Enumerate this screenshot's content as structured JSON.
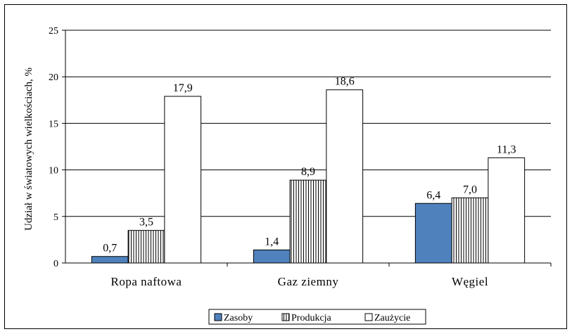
{
  "chart_data": {
    "type": "bar",
    "categories": [
      "Ropa naftowa",
      "Gaz ziemny",
      "Węgiel"
    ],
    "series": [
      {
        "name": "Zasoby",
        "values": [
          0.7,
          1.4,
          6.4
        ],
        "labels": [
          "0,7",
          "1,4",
          "6,4"
        ],
        "color": "#4f81bd",
        "fill": "solid"
      },
      {
        "name": "Produkcja",
        "values": [
          3.5,
          8.9,
          7.0
        ],
        "labels": [
          "3,5",
          "8,9",
          "7,0"
        ],
        "color": "#ffffff",
        "fill": "vertical-lines"
      },
      {
        "name": "Zaużycie",
        "values": [
          17.9,
          18.6,
          11.3
        ],
        "labels": [
          "17,9",
          "18,6",
          "11,3"
        ],
        "color": "#ffffff",
        "fill": "solid"
      }
    ],
    "title": "",
    "xlabel": "",
    "ylabel": "Udział w światowych wielkościach, %",
    "ylim": [
      0,
      25
    ],
    "yticks": [
      0,
      5,
      10,
      15,
      20,
      25
    ],
    "grid": true,
    "legend_position": "bottom"
  }
}
